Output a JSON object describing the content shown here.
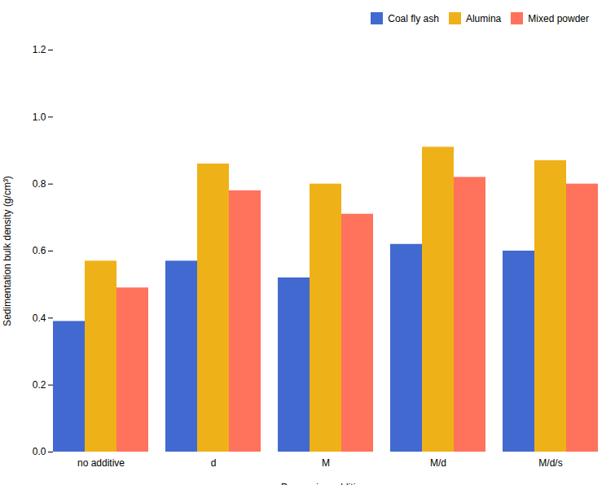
{
  "chart_data": {
    "type": "bar",
    "categories": [
      "no additive",
      "d",
      "M",
      "M/d",
      "M/d/s"
    ],
    "series": [
      {
        "name": "Coal fly ash",
        "values": [
          0.39,
          0.57,
          0.52,
          0.62,
          0.6
        ]
      },
      {
        "name": "Alumina",
        "values": [
          0.57,
          0.86,
          0.8,
          0.91,
          0.87
        ]
      },
      {
        "name": "Mixed powder",
        "values": [
          0.49,
          0.78,
          0.71,
          0.82,
          0.8
        ]
      }
    ],
    "xlabel": "Processing additives",
    "ylabel": "Sedimentation bulk density (g/cm³)",
    "ylim": [
      0.0,
      1.2
    ],
    "yticks": [
      {
        "value": 0.0,
        "label": "0.0"
      },
      0.2,
      0.4,
      0.6,
      0.8,
      {
        "value": 1.0,
        "label": "1.0"
      },
      1.2
    ],
    "grid": false,
    "legend": "upper right"
  }
}
